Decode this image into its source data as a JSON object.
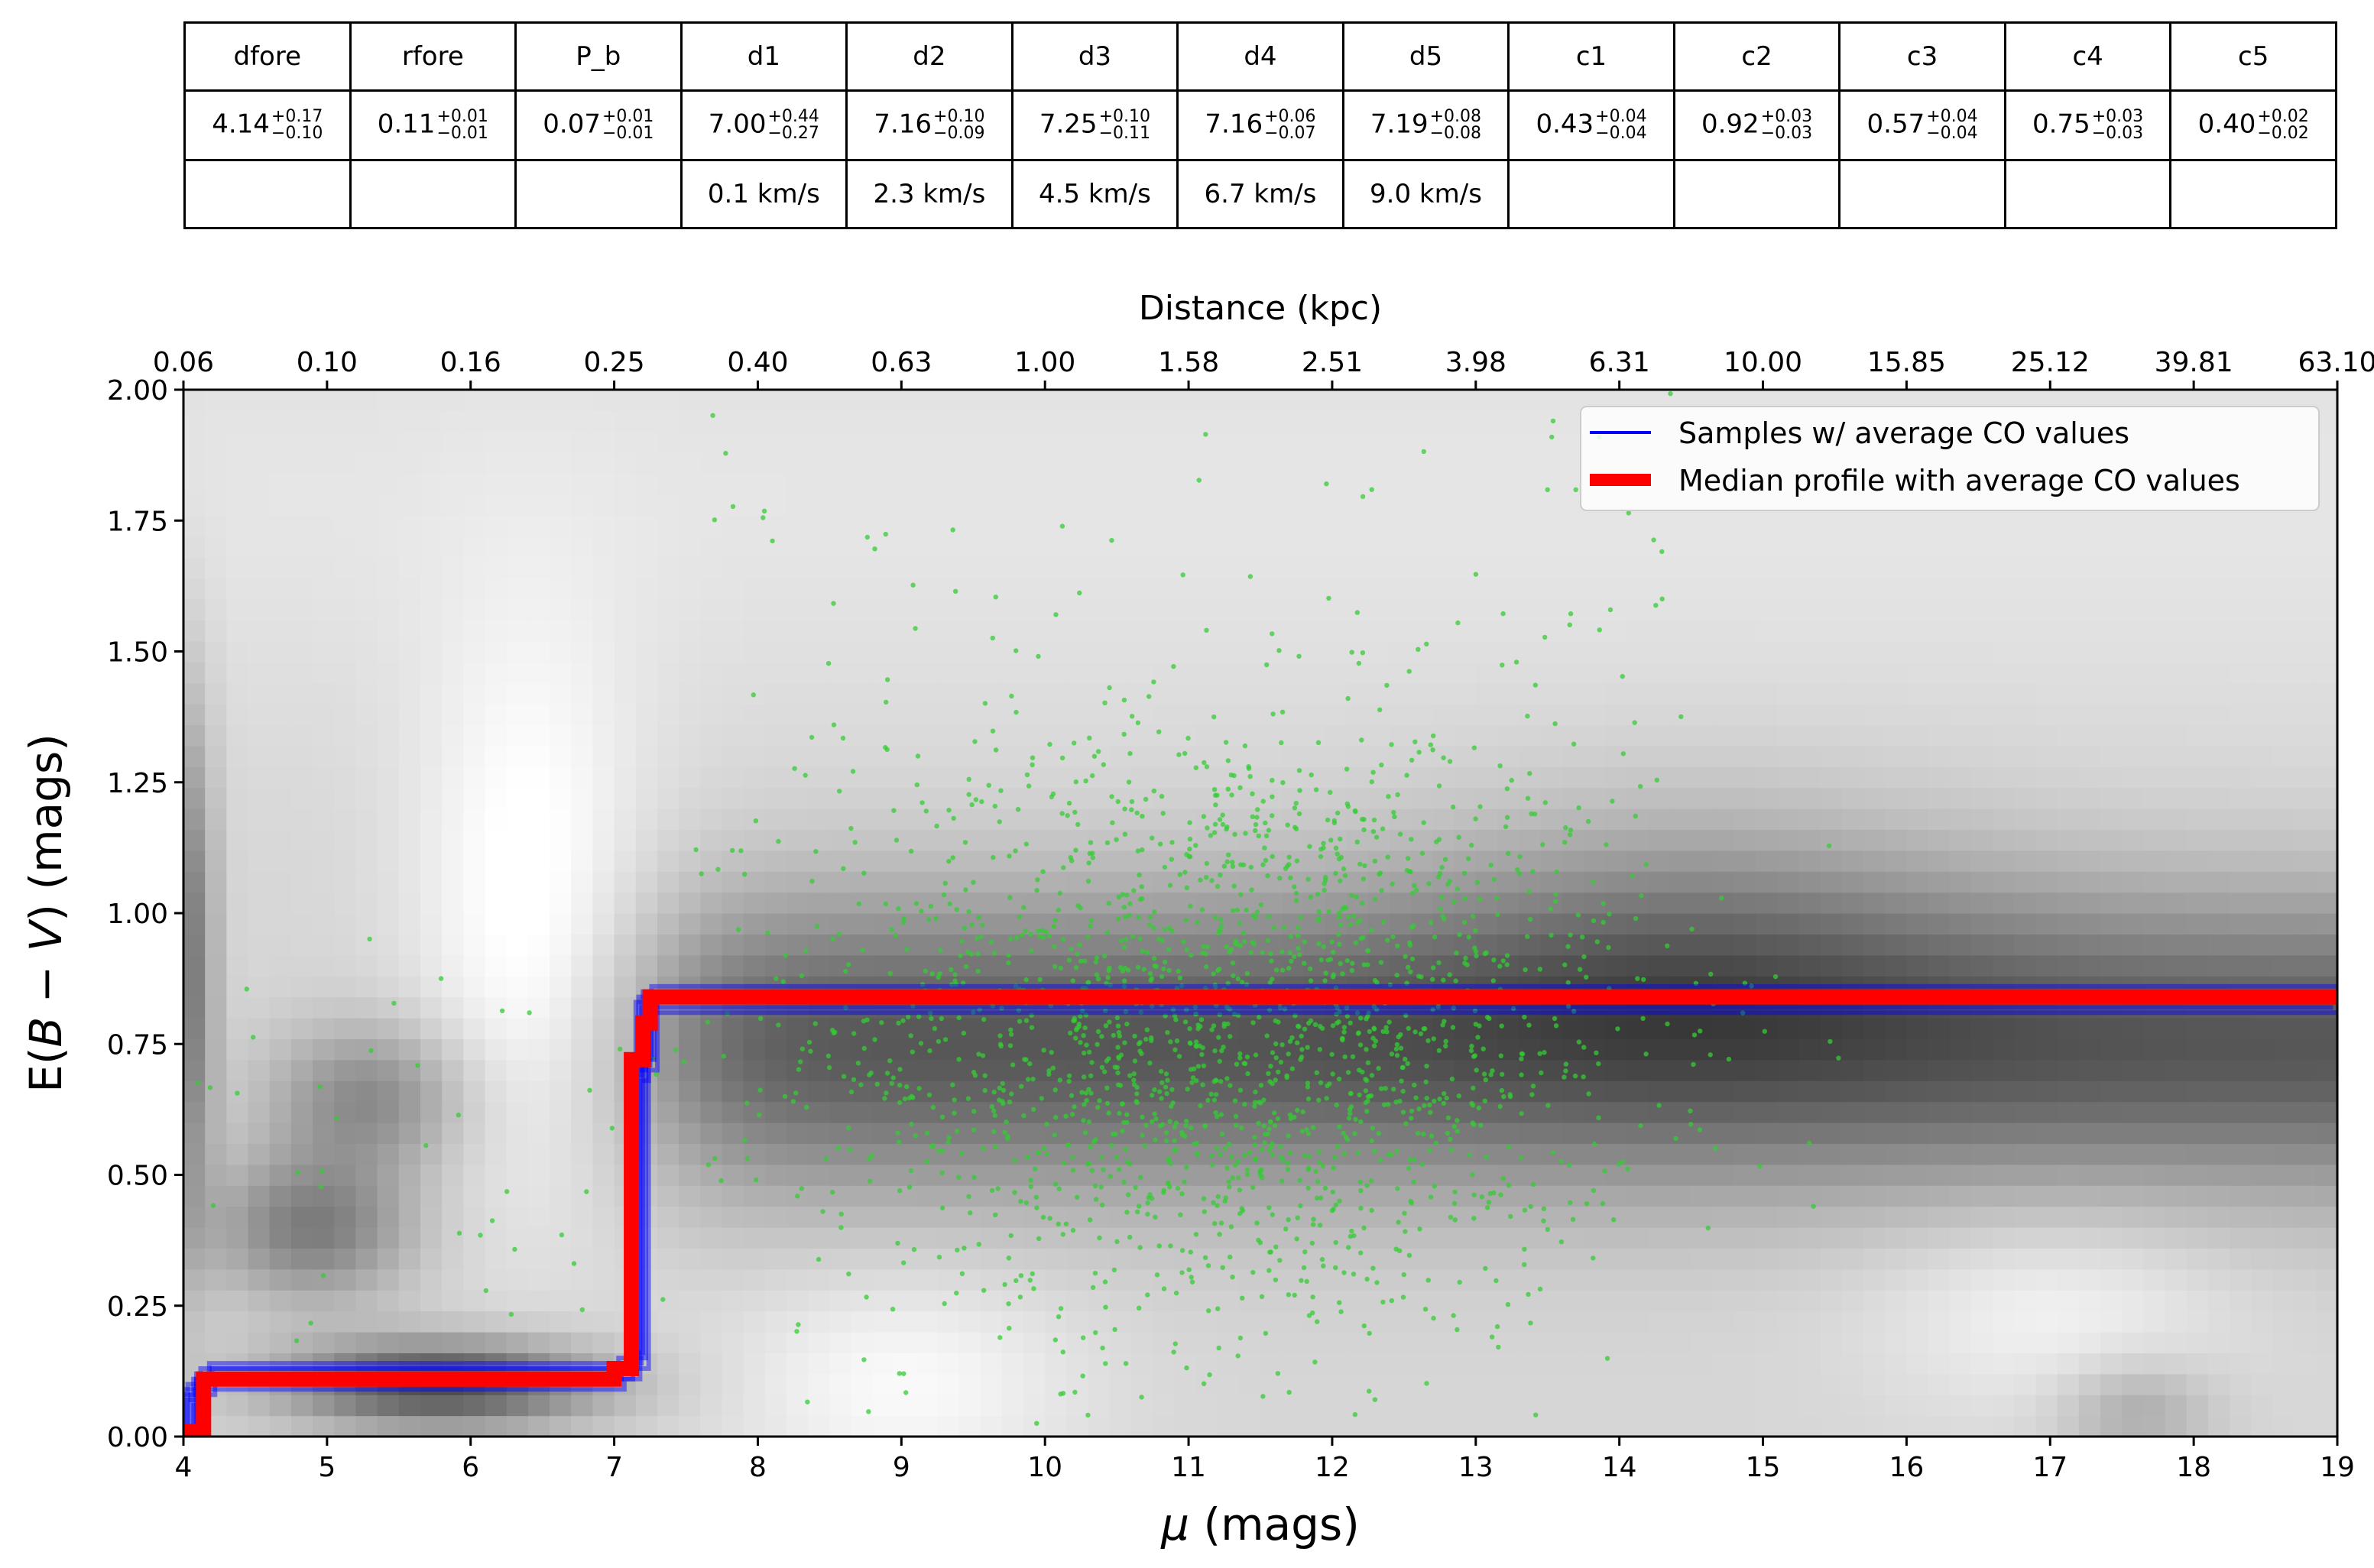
{
  "table": {
    "headers": [
      "dfore",
      "rfore",
      "P_b",
      "d1",
      "d2",
      "d3",
      "d4",
      "d5",
      "c1",
      "c2",
      "c3",
      "c4",
      "c5"
    ],
    "values": [
      {
        "v": "4.14",
        "plus": "+0.17",
        "minus": "−0.10"
      },
      {
        "v": "0.11",
        "plus": "+0.01",
        "minus": "−0.01"
      },
      {
        "v": "0.07",
        "plus": "+0.01",
        "minus": "−0.01"
      },
      {
        "v": "7.00",
        "plus": "+0.44",
        "minus": "−0.27"
      },
      {
        "v": "7.16",
        "plus": "+0.10",
        "minus": "−0.09"
      },
      {
        "v": "7.25",
        "plus": "+0.10",
        "minus": "−0.11"
      },
      {
        "v": "7.16",
        "plus": "+0.06",
        "minus": "−0.07"
      },
      {
        "v": "7.19",
        "plus": "+0.08",
        "minus": "−0.08"
      },
      {
        "v": "0.43",
        "plus": "+0.04",
        "minus": "−0.04"
      },
      {
        "v": "0.92",
        "plus": "+0.03",
        "minus": "−0.03"
      },
      {
        "v": "0.57",
        "plus": "+0.04",
        "minus": "−0.04"
      },
      {
        "v": "0.75",
        "plus": "+0.03",
        "minus": "−0.03"
      },
      {
        "v": "0.40",
        "plus": "+0.02",
        "minus": "−0.02"
      }
    ],
    "velocities": [
      "",
      "",
      "",
      "0.1 km/s",
      "2.3 km/s",
      "4.5 km/s",
      "6.7 km/s",
      "9.0 km/s",
      "",
      "",
      "",
      "",
      ""
    ]
  },
  "chart_data": {
    "type": "line",
    "title": "",
    "xlabel_symbol": "μ",
    "xlabel_unit": "(mags)",
    "ylabel_prefix": "E(",
    "ylabel_b": "B",
    "ylabel_minus": " − ",
    "ylabel_v": "V",
    "ylabel_suffix": ") (mags)",
    "top_xlabel": "Distance (kpc)",
    "xlim": [
      4,
      19
    ],
    "ylim": [
      0,
      2
    ],
    "x_ticks": [
      4,
      5,
      6,
      7,
      8,
      9,
      10,
      11,
      12,
      13,
      14,
      15,
      16,
      17,
      18,
      19
    ],
    "x_tick_labels": [
      "4",
      "5",
      "6",
      "7",
      "8",
      "9",
      "10",
      "11",
      "12",
      "13",
      "14",
      "15",
      "16",
      "17",
      "18",
      "19"
    ],
    "y_ticks": [
      0,
      0.25,
      0.5,
      0.75,
      1.0,
      1.25,
      1.5,
      1.75,
      2.0
    ],
    "y_tick_labels": [
      "0.00",
      "0.25",
      "0.50",
      "0.75",
      "1.00",
      "1.25",
      "1.50",
      "1.75",
      "2.00"
    ],
    "top_x_ticks": [
      4,
      5,
      6,
      7,
      8,
      9,
      10,
      11,
      12,
      13,
      14,
      15,
      16,
      17,
      18,
      19
    ],
    "top_x_tick_labels": [
      "0.06",
      "0.10",
      "0.16",
      "0.25",
      "0.40",
      "0.63",
      "1.00",
      "1.58",
      "2.51",
      "3.98",
      "6.31",
      "10.00",
      "15.85",
      "25.12",
      "39.81",
      "63.10"
    ],
    "legend_position": "top-right",
    "series": [
      {
        "name": "Samples  w/ average CO values",
        "color": "#0000ff",
        "x": [
          4.05,
          4.05,
          4.14,
          4.14,
          7.05,
          7.05,
          7.16,
          7.16,
          7.22,
          7.22,
          19
        ],
        "y": [
          0.0,
          0.08,
          0.08,
          0.11,
          0.11,
          0.13,
          0.13,
          0.7,
          0.7,
          0.83,
          0.83
        ]
      },
      {
        "name": "Median profile with average CO values",
        "color": "#ff0000",
        "x": [
          4.0,
          4.14,
          4.14,
          7.0,
          7.0,
          7.12,
          7.12,
          7.2,
          7.2,
          7.25,
          7.25,
          19
        ],
        "y": [
          0.01,
          0.01,
          0.11,
          0.11,
          0.13,
          0.13,
          0.72,
          0.72,
          0.79,
          0.79,
          0.84,
          0.84
        ]
      }
    ],
    "scatter_color": "#33cc33",
    "background": "grayscale density map"
  }
}
